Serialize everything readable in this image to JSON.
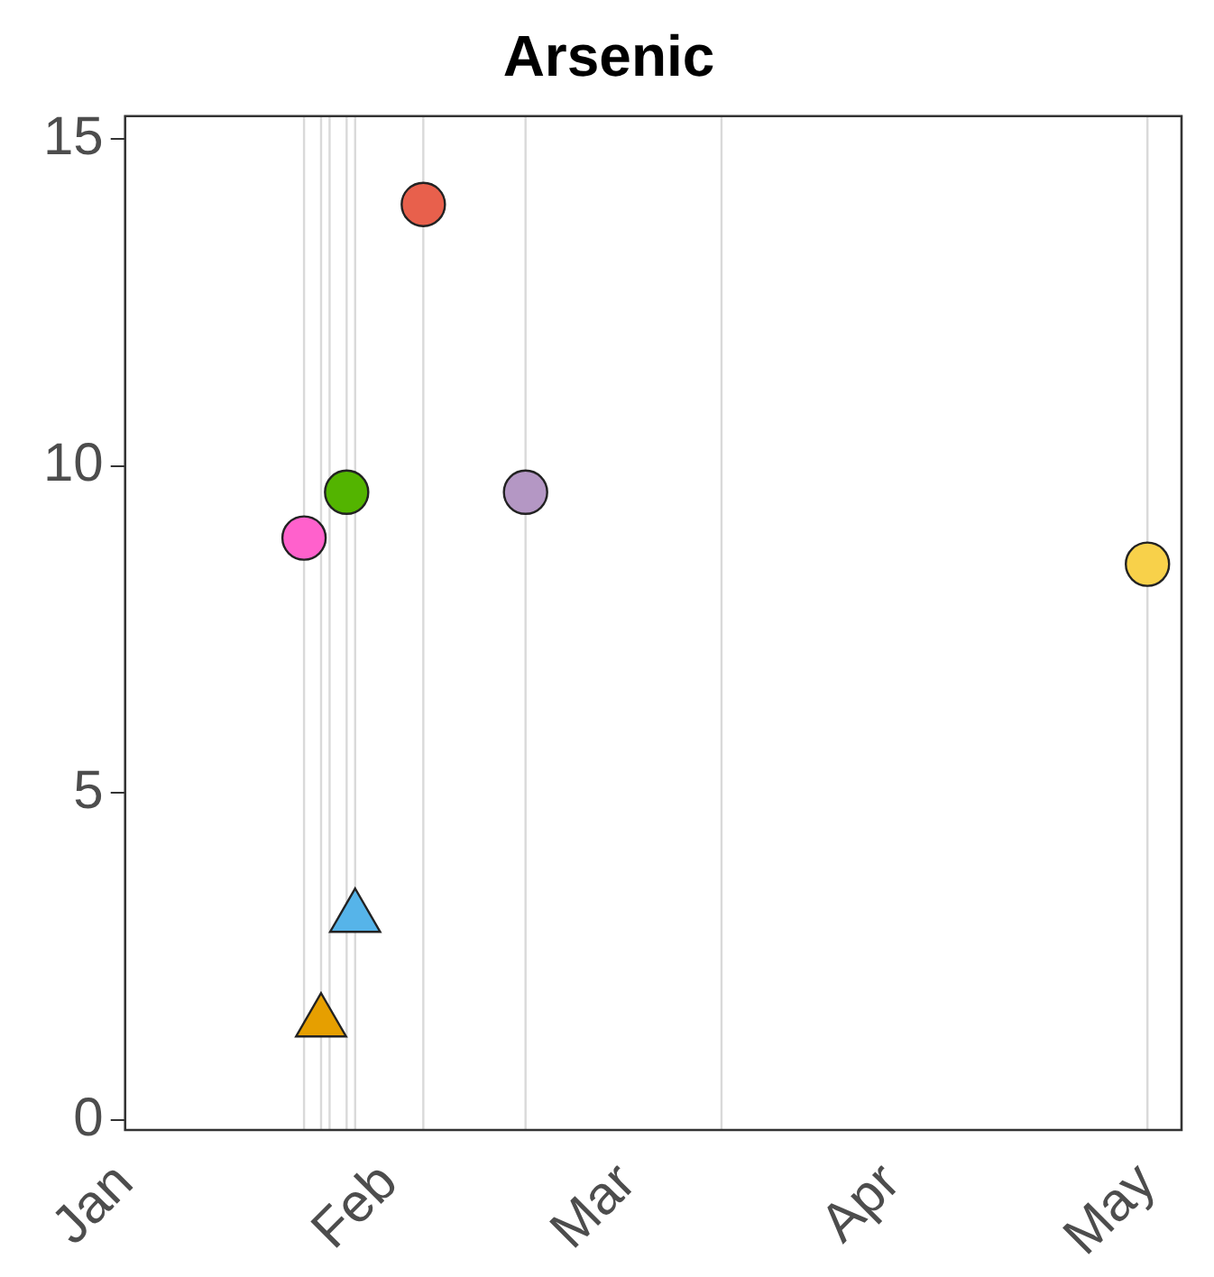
{
  "chart_data": {
    "type": "scatter",
    "title": "Arsenic",
    "xlim": [
      "--01-01",
      "--05-05"
    ],
    "xticks": [
      {
        "value": "--01-01",
        "label": "Jan"
      },
      {
        "value": "--02-01",
        "label": "Feb"
      },
      {
        "value": "--03-01",
        "label": "Mar"
      },
      {
        "value": "--04-01",
        "label": "Apr"
      },
      {
        "value": "--05-01",
        "label": "May"
      }
    ],
    "ylim": [
      -0.15,
      15.35
    ],
    "yticks": [
      0,
      5,
      10,
      15
    ],
    "series": [
      {
        "color": "#ff61cc",
        "marker": "circle",
        "x": [
          "--01-22"
        ],
        "values": [
          8.9
        ]
      },
      {
        "color": "#e69f00",
        "marker": "triangle",
        "x": [
          "--01-24"
        ],
        "values": [
          1.5
        ]
      },
      {
        "color": "#53b400",
        "marker": "circle",
        "x": [
          "--01-27"
        ],
        "values": [
          9.6
        ]
      },
      {
        "color": "#56b4e9",
        "marker": "triangle",
        "x": [
          "--01-28"
        ],
        "values": [
          3.1
        ]
      },
      {
        "color": "#e8604c",
        "marker": "circle",
        "x": [
          "--02-05"
        ],
        "values": [
          14.0
        ]
      },
      {
        "color": "#b497c4",
        "marker": "circle",
        "x": [
          "--02-17"
        ],
        "values": [
          9.6
        ]
      },
      {
        "color": "#f8d14a",
        "marker": "circle",
        "x": [
          "--05-01"
        ],
        "values": [
          8.5
        ]
      }
    ],
    "ref_lines": [
      {
        "axis": "x",
        "value": "--01-22",
        "color": "#d9d9d9"
      },
      {
        "axis": "x",
        "value": "--01-24",
        "color": "#d9d9d9"
      },
      {
        "axis": "x",
        "value": "--01-25",
        "color": "#d9d9d9"
      },
      {
        "axis": "x",
        "value": "--01-27",
        "color": "#d9d9d9"
      },
      {
        "axis": "x",
        "value": "--01-28",
        "color": "#d9d9d9"
      },
      {
        "axis": "x",
        "value": "--02-05",
        "color": "#d9d9d9"
      },
      {
        "axis": "x",
        "value": "--02-17",
        "color": "#d9d9d9"
      },
      {
        "axis": "x",
        "value": "--03-12",
        "color": "#d9d9d9"
      },
      {
        "axis": "x",
        "value": "--05-01",
        "color": "#d9d9d9"
      }
    ],
    "legend": false
  }
}
